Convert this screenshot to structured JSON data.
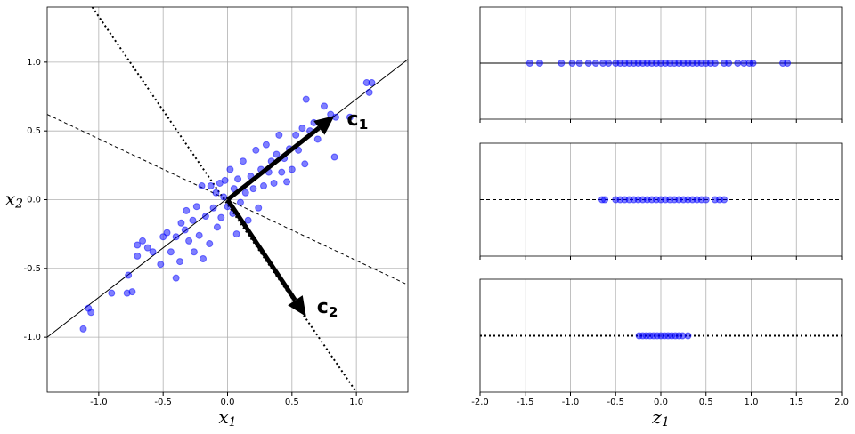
{
  "chart_data": [
    {
      "type": "scatter",
      "xlim": [
        -1.4,
        1.4
      ],
      "ylim": [
        -1.4,
        1.4
      ],
      "xticks": [
        {
          "value": -1,
          "label": "-1.0"
        },
        {
          "value": -0.5,
          "label": "-0.5"
        },
        {
          "value": 0,
          "label": "0.0"
        },
        {
          "value": 0.5,
          "label": "0.5"
        },
        {
          "value": 1,
          "label": "1.0"
        }
      ],
      "yticks": [
        {
          "value": -1,
          "label": "-1.0"
        },
        {
          "value": -0.5,
          "label": "-0.5"
        },
        {
          "value": 0,
          "label": "0.0"
        },
        {
          "value": 0.5,
          "label": "0.5"
        },
        {
          "value": 1,
          "label": "1.0"
        }
      ],
      "xlabel": {
        "text": "x",
        "sub": "1"
      },
      "ylabel": {
        "text": "x",
        "sub": "2"
      },
      "grid": true,
      "series": [
        {
          "color": "#0000ff",
          "x": [
            -1.12,
            -1.08,
            -1.06,
            -0.9,
            -0.78,
            -0.74,
            -0.77,
            -0.7,
            -0.7,
            -0.66,
            -0.62,
            -0.58,
            -0.52,
            -0.5,
            -0.47,
            -0.44,
            -0.4,
            -0.4,
            -0.37,
            -0.36,
            -0.33,
            -0.32,
            -0.3,
            -0.27,
            -0.26,
            -0.24,
            -0.22,
            -0.2,
            -0.19,
            -0.17,
            -0.14,
            -0.13,
            -0.11,
            -0.09,
            -0.08,
            -0.06,
            -0.05,
            -0.03,
            -0.02,
            0.0,
            0.02,
            0.04,
            0.05,
            0.07,
            0.08,
            0.1,
            0.12,
            0.14,
            0.16,
            0.18,
            0.2,
            0.22,
            0.24,
            0.26,
            0.28,
            0.3,
            0.32,
            0.34,
            0.36,
            0.38,
            0.4,
            0.42,
            0.44,
            0.46,
            0.48,
            0.5,
            0.53,
            0.55,
            0.58,
            0.6,
            0.61,
            0.64,
            0.67,
            0.7,
            0.73,
            0.75,
            0.8,
            0.83,
            0.84,
            0.95,
            1.08,
            1.1,
            1.12
          ],
          "y": [
            -0.94,
            -0.79,
            -0.82,
            -0.68,
            -0.68,
            -0.67,
            -0.55,
            -0.41,
            -0.33,
            -0.3,
            -0.35,
            -0.38,
            -0.47,
            -0.27,
            -0.24,
            -0.38,
            -0.57,
            -0.27,
            -0.45,
            -0.17,
            -0.22,
            -0.08,
            -0.3,
            -0.15,
            -0.38,
            -0.05,
            -0.26,
            0.1,
            -0.43,
            -0.12,
            -0.32,
            0.1,
            -0.06,
            0.05,
            -0.2,
            0.12,
            -0.13,
            0.02,
            0.14,
            -0.05,
            0.22,
            -0.1,
            0.08,
            -0.25,
            0.15,
            -0.02,
            0.28,
            0.05,
            -0.15,
            0.17,
            0.08,
            0.36,
            -0.06,
            0.22,
            0.1,
            0.4,
            0.2,
            0.28,
            0.12,
            0.33,
            0.47,
            0.2,
            0.3,
            0.13,
            0.37,
            0.22,
            0.47,
            0.36,
            0.52,
            0.26,
            0.73,
            0.5,
            0.56,
            0.44,
            0.55,
            0.68,
            0.62,
            0.31,
            0.6,
            0.6,
            0.85,
            0.78,
            0.85
          ]
        }
      ],
      "lines": [
        {
          "style": "solid",
          "x": [
            -1.4,
            1.4
          ],
          "y": [
            -1.0,
            1.02
          ]
        },
        {
          "style": "dashed",
          "x": [
            -1.4,
            1.4
          ],
          "y": [
            0.62,
            -0.62
          ]
        },
        {
          "style": "dotted",
          "x": [
            -1.05,
            1.0
          ],
          "y": [
            1.4,
            -1.4
          ]
        }
      ],
      "arrows": [
        {
          "x": [
            0,
            0.83
          ],
          "y": [
            0,
            0.61
          ]
        },
        {
          "x": [
            0,
            0.61
          ],
          "y": [
            0,
            -0.85
          ]
        }
      ],
      "annotations": [
        {
          "text": "c",
          "sub": "1"
        },
        {
          "text": "c",
          "sub": "2"
        }
      ]
    },
    {
      "type": "strip",
      "xlim": [
        -2,
        2
      ],
      "xticks": [
        -2,
        -1.5,
        -1,
        -0.5,
        0,
        0.5,
        1,
        1.5,
        2
      ],
      "grid": true,
      "line": "solid",
      "color": "#0000ff",
      "values": [
        -1.45,
        -1.34,
        -1.1,
        -0.98,
        -0.9,
        -0.8,
        -0.72,
        -0.64,
        -0.58,
        -0.5,
        -0.45,
        -0.4,
        -0.35,
        -0.3,
        -0.25,
        -0.2,
        -0.15,
        -0.1,
        -0.05,
        0,
        0.05,
        0.1,
        0.15,
        0.2,
        0.25,
        0.3,
        0.35,
        0.4,
        0.45,
        0.5,
        0.55,
        0.6,
        0.7,
        0.75,
        0.85,
        0.92,
        0.98,
        1.02,
        1.35,
        1.4
      ]
    },
    {
      "type": "strip",
      "xlim": [
        -2,
        2
      ],
      "xticks": [
        -2,
        -1.5,
        -1,
        -0.5,
        0,
        0.5,
        1,
        1.5,
        2
      ],
      "grid": true,
      "line": "dashed",
      "color": "#0000ff",
      "values": [
        -0.65,
        -0.62,
        -0.5,
        -0.45,
        -0.4,
        -0.35,
        -0.3,
        -0.25,
        -0.2,
        -0.15,
        -0.1,
        -0.05,
        0,
        0.05,
        0.1,
        0.15,
        0.2,
        0.25,
        0.3,
        0.35,
        0.4,
        0.45,
        0.5,
        0.6,
        0.65,
        0.7
      ]
    },
    {
      "type": "strip",
      "xlim": [
        -2,
        2
      ],
      "xticks": [
        {
          "value": -2,
          "label": "-2.0"
        },
        {
          "value": -1.5,
          "label": "-1.5"
        },
        {
          "value": -1,
          "label": "-1.0"
        },
        {
          "value": -0.5,
          "label": "-0.5"
        },
        {
          "value": 0,
          "label": "0.0"
        },
        {
          "value": 0.5,
          "label": "0.5"
        },
        {
          "value": 1,
          "label": "1.0"
        },
        {
          "value": 1.5,
          "label": "1.5"
        },
        {
          "value": 2,
          "label": "2.0"
        }
      ],
      "grid": true,
      "line": "dotted",
      "color": "#0000ff",
      "xlabel": {
        "text": "z",
        "sub": "1"
      },
      "values": [
        -0.24,
        -0.2,
        -0.16,
        -0.12,
        -0.08,
        -0.04,
        0,
        0.04,
        0.08,
        0.12,
        0.16,
        0.2,
        0.24,
        0.3
      ]
    }
  ]
}
